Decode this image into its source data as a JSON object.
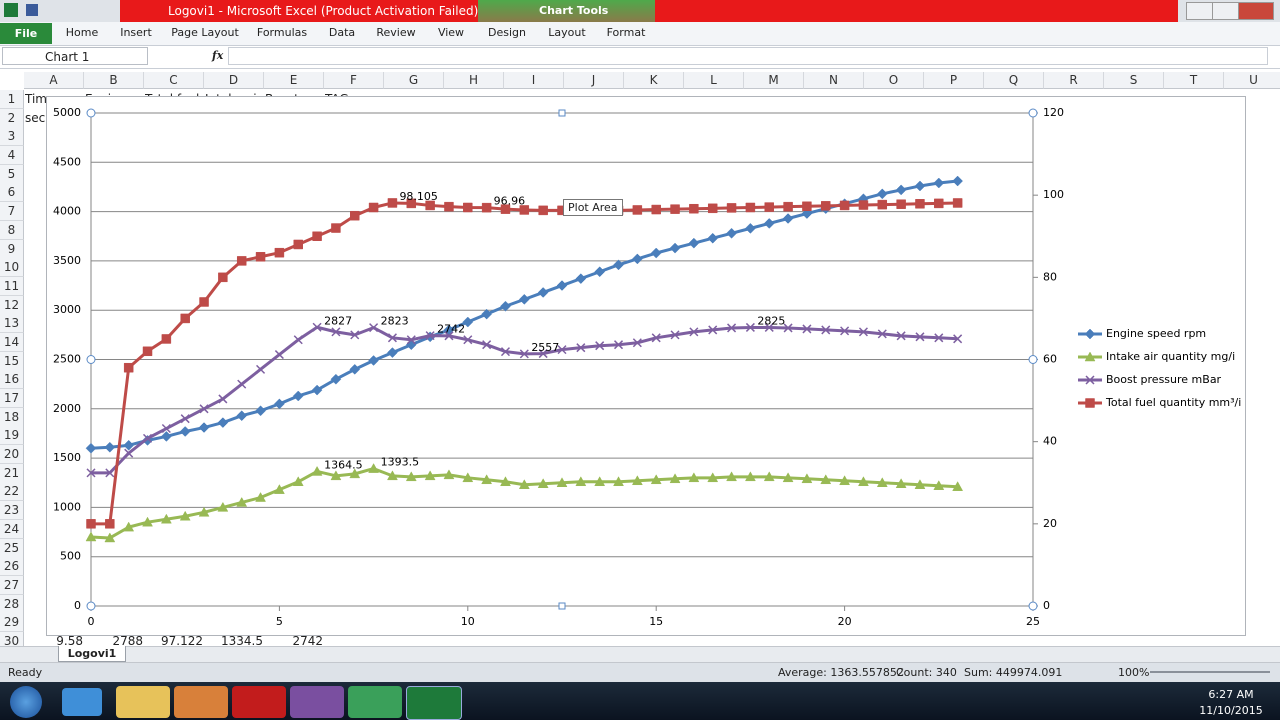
{
  "window": {
    "title": "Logovi1 - Microsoft Excel (Product Activation Failed)",
    "contextual_tab_group": "Chart Tools"
  },
  "ribbon": {
    "tabs": [
      "File",
      "Home",
      "Insert",
      "Page Layout",
      "Formulas",
      "Data",
      "Review",
      "View",
      "Design",
      "Layout",
      "Format"
    ]
  },
  "formula_bar": {
    "name_box": "Chart 1",
    "function_label": "fx"
  },
  "sheet": {
    "columns": [
      "A",
      "B",
      "C",
      "D",
      "E",
      "F",
      "G",
      "H",
      "I",
      "J",
      "K",
      "L",
      "M",
      "N",
      "O",
      "P",
      "Q",
      "R",
      "S",
      "T",
      "U"
    ],
    "rows": [
      1,
      2,
      3,
      4,
      5,
      6,
      7,
      8,
      9,
      10,
      11,
      12,
      13,
      14,
      15,
      16,
      17,
      18,
      19,
      20,
      21,
      22,
      23,
      24,
      25,
      26,
      27,
      28,
      29,
      30
    ],
    "cells": {
      "1": [
        "Time",
        "Engine sp",
        "Total fuel",
        "Intake air",
        "Boost pre",
        "TAG"
      ],
      "2": [
        "sec"
      ],
      "30": [
        "9.58",
        "2788",
        "97.122",
        "1334.5",
        "2742"
      ]
    },
    "tab": "Logovi1"
  },
  "tooltip": "Plot Area",
  "chart_data": {
    "type": "line",
    "x": [
      0,
      0.5,
      1,
      1.5,
      2,
      2.5,
      3,
      3.5,
      4,
      4.5,
      5,
      5.5,
      6,
      6.5,
      7,
      7.5,
      8,
      8.5,
      9,
      9.5,
      10,
      10.5,
      11,
      11.5,
      12,
      12.5,
      13,
      13.5,
      14,
      14.5,
      15,
      15.5,
      16,
      16.5,
      17,
      17.5,
      18,
      18.5,
      19,
      19.5,
      20,
      20.5,
      21,
      21.5,
      22,
      22.5,
      23
    ],
    "xlim": [
      0,
      25
    ],
    "xticks": [
      0,
      5,
      10,
      15,
      20,
      25
    ],
    "ylim": [
      0,
      5000
    ],
    "yticks": [
      0,
      500,
      1000,
      1500,
      2000,
      2500,
      3000,
      3500,
      4000,
      4500,
      5000
    ],
    "y2lim": [
      0,
      120
    ],
    "y2ticks": [
      0,
      20,
      40,
      60,
      80,
      100,
      120
    ],
    "grid": true,
    "legend": "right",
    "series": [
      {
        "name": "Engine speed rpm",
        "color": "#4a7ebb",
        "marker": "diamond",
        "axis": "y",
        "values": [
          1600,
          1610,
          1630,
          1680,
          1720,
          1770,
          1810,
          1860,
          1930,
          1980,
          2050,
          2130,
          2190,
          2300,
          2400,
          2490,
          2570,
          2650,
          2730,
          2800,
          2880,
          2960,
          3040,
          3110,
          3180,
          3250,
          3320,
          3390,
          3460,
          3520,
          3580,
          3630,
          3680,
          3730,
          3780,
          3830,
          3880,
          3930,
          3980,
          4030,
          4080,
          4130,
          4180,
          4220,
          4260,
          4290,
          4310
        ],
        "labels_at": []
      },
      {
        "name": "Intake air quantity mg/i",
        "color": "#98b954",
        "marker": "triangle",
        "axis": "y",
        "values": [
          700,
          690,
          800,
          850,
          880,
          910,
          950,
          1000,
          1050,
          1100,
          1180,
          1260,
          1364.5,
          1320,
          1340,
          1393.5,
          1320,
          1310,
          1320,
          1330,
          1300,
          1280,
          1260,
          1230,
          1240,
          1250,
          1260,
          1260,
          1260,
          1270,
          1280,
          1290,
          1300,
          1300,
          1310,
          1310,
          1310,
          1300,
          1290,
          1280,
          1270,
          1260,
          1250,
          1240,
          1230,
          1220,
          1210
        ],
        "labels_at": [
          12,
          15
        ]
      },
      {
        "name": "Boost pressure mBar",
        "color": "#7d5fa0",
        "marker": "x",
        "axis": "y",
        "values": [
          1350,
          1350,
          1550,
          1700,
          1800,
          1900,
          2000,
          2100,
          2250,
          2400,
          2550,
          2700,
          2827,
          2780,
          2750,
          2823,
          2720,
          2700,
          2742,
          2740,
          2700,
          2650,
          2580,
          2557,
          2560,
          2600,
          2620,
          2640,
          2650,
          2670,
          2720,
          2750,
          2780,
          2800,
          2820,
          2825,
          2825,
          2820,
          2810,
          2800,
          2790,
          2780,
          2760,
          2740,
          2730,
          2720,
          2710
        ],
        "labels_at": [
          12,
          15,
          18,
          23,
          35
        ]
      },
      {
        "name": "Total fuel quantity mm³/i",
        "color": "#be4b48",
        "marker": "square",
        "axis": "y2",
        "values": [
          20,
          20,
          58,
          62,
          65,
          70,
          74,
          80,
          84,
          85,
          86,
          88,
          90,
          92,
          95,
          97,
          98.105,
          98,
          97.5,
          97.2,
          97,
          96.96,
          96.6,
          96.4,
          96.3,
          96.3,
          96.3,
          96.3,
          96.3,
          96.4,
          96.5,
          96.6,
          96.7,
          96.8,
          96.9,
          97,
          97.1,
          97.2,
          97.3,
          97.4,
          97.5,
          97.6,
          97.7,
          97.8,
          97.9,
          98,
          98.1
        ],
        "labels_at": [
          16,
          21
        ]
      }
    ]
  },
  "status_bar": {
    "mode": "Ready",
    "average": "Average: 1363.557852",
    "count": "Count: 340",
    "sum": "Sum: 449974.091",
    "zoom": "100%"
  },
  "taskbar": {
    "time": "6:27 AM",
    "date": "11/10/2015"
  }
}
